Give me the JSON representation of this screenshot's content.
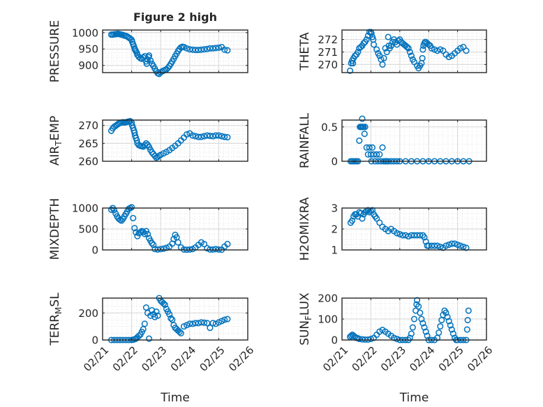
{
  "figure": {
    "title": "Figure 2 high",
    "marker_color": "#0072BD"
  },
  "chart_data": [
    {
      "type": "scatter",
      "id": "pressure",
      "title": "Figure 2 high",
      "ylabel": "PRESSURE",
      "ylabel_parts": [
        {
          "t": "PRESSURE",
          "s": "normal"
        }
      ],
      "xlabel": "",
      "xlim": [
        0,
        5
      ],
      "ylim": [
        878,
        1008
      ],
      "yticks": [
        900,
        950,
        1000
      ],
      "ytick_labels": [
        "900",
        "950",
        "1000"
      ],
      "xticks": [
        0,
        1,
        2,
        3,
        4,
        5
      ],
      "xtick_labels": [],
      "grid": true,
      "minor_grid": true,
      "x": [
        0.3,
        0.35,
        0.4,
        0.45,
        0.5,
        0.55,
        0.6,
        0.65,
        0.7,
        0.75,
        0.8,
        0.85,
        0.9,
        0.95,
        1.0,
        1.02,
        1.05,
        1.08,
        1.1,
        1.12,
        1.15,
        1.18,
        1.2,
        1.25,
        1.3,
        1.35,
        1.4,
        1.45,
        1.5,
        1.52,
        1.55,
        1.58,
        1.6,
        1.65,
        1.7,
        1.75,
        1.8,
        1.85,
        1.9,
        1.95,
        2.0,
        2.05,
        2.1,
        2.15,
        2.2,
        2.25,
        2.3,
        2.35,
        2.4,
        2.45,
        2.5,
        2.55,
        2.6,
        2.65,
        2.7,
        2.75,
        2.8,
        2.9,
        3.0,
        3.1,
        3.2,
        3.3,
        3.4,
        3.5,
        3.6,
        3.7,
        3.8,
        3.9,
        4.0,
        4.1,
        4.2,
        4.3
      ],
      "y": [
        994,
        994,
        995,
        995,
        996,
        996,
        995,
        994,
        993,
        991,
        990,
        988,
        985,
        982,
        978,
        972,
        965,
        958,
        952,
        948,
        943,
        938,
        932,
        926,
        922,
        920,
        924,
        928,
        912,
        905,
        918,
        925,
        930,
        915,
        905,
        898,
        890,
        882,
        876,
        874,
        879,
        882,
        884,
        886,
        888,
        892,
        898,
        905,
        912,
        920,
        928,
        936,
        944,
        950,
        955,
        957,
        956,
        952,
        949,
        948,
        947,
        947,
        948,
        949,
        950,
        952,
        952,
        953,
        954,
        956,
        948,
        946
      ]
    },
    {
      "type": "scatter",
      "id": "theta",
      "ylabel": "THETA",
      "ylabel_parts": [
        {
          "t": "THETA",
          "s": "normal"
        }
      ],
      "xlabel": "",
      "xlim": [
        0,
        5
      ],
      "ylim": [
        269.35,
        272.76
      ],
      "yticks": [
        270,
        271,
        272
      ],
      "ytick_labels": [
        "270",
        "271",
        "272"
      ],
      "xticks": [
        0,
        1,
        2,
        3,
        4,
        5
      ],
      "xtick_labels": [],
      "grid": true,
      "minor_grid": true,
      "x": [
        0.28,
        0.32,
        0.35,
        0.38,
        0.4,
        0.45,
        0.5,
        0.55,
        0.6,
        0.65,
        0.7,
        0.75,
        0.8,
        0.85,
        0.9,
        0.95,
        1.0,
        1.02,
        1.05,
        1.08,
        1.1,
        1.2,
        1.25,
        1.3,
        1.35,
        1.4,
        1.45,
        1.5,
        1.55,
        1.6,
        1.62,
        1.65,
        1.7,
        1.75,
        1.8,
        1.85,
        1.9,
        1.95,
        2.0,
        2.05,
        2.1,
        2.15,
        2.2,
        2.25,
        2.3,
        2.35,
        2.4,
        2.45,
        2.5,
        2.6,
        2.65,
        2.7,
        2.75,
        2.78,
        2.8,
        2.82,
        2.85,
        2.88,
        2.9,
        2.95,
        3.0,
        3.05,
        3.1,
        3.2,
        3.3,
        3.4,
        3.5,
        3.6,
        3.7,
        3.8,
        3.9,
        4.0,
        4.1,
        4.2,
        4.3
      ],
      "y": [
        269.5,
        270.1,
        270.3,
        270.1,
        270.5,
        270.7,
        270.8,
        271.0,
        271.3,
        271.4,
        271.5,
        271.7,
        271.8,
        272.0,
        272.3,
        272.6,
        272.6,
        272.5,
        272.2,
        272.0,
        271.6,
        271.2,
        270.9,
        270.7,
        270.4,
        270.0,
        270.5,
        271.3,
        271.0,
        272.2,
        271.5,
        271.3,
        271.5,
        271.8,
        272.0,
        271.8,
        271.6,
        271.9,
        272.0,
        271.8,
        271.7,
        271.6,
        271.5,
        271.4,
        271.3,
        271.0,
        270.7,
        270.4,
        270.2,
        269.9,
        269.7,
        269.9,
        270.1,
        270.5,
        271.2,
        271.5,
        271.7,
        271.8,
        271.8,
        271.7,
        271.6,
        271.5,
        271.3,
        271.2,
        271.1,
        271.2,
        271.1,
        270.8,
        270.6,
        270.7,
        270.9,
        271.1,
        271.3,
        271.4,
        271.1
      ]
    },
    {
      "type": "scatter",
      "id": "air_temp",
      "ylabel": "AIR_TEMP",
      "ylabel_parts": [
        {
          "t": "AIR",
          "s": "normal"
        },
        {
          "t": "T",
          "s": "sub"
        },
        {
          "t": "EMP",
          "s": "normal"
        }
      ],
      "xlabel": "",
      "xlim": [
        0,
        5
      ],
      "ylim": [
        260,
        271.5
      ],
      "yticks": [
        260,
        265,
        270
      ],
      "ytick_labels": [
        "260",
        "265",
        "270"
      ],
      "xticks": [
        0,
        1,
        2,
        3,
        4,
        5
      ],
      "xtick_labels": [],
      "grid": true,
      "minor_grid": true,
      "x": [
        0.3,
        0.35,
        0.4,
        0.45,
        0.5,
        0.55,
        0.6,
        0.65,
        0.7,
        0.75,
        0.8,
        0.85,
        0.9,
        0.95,
        1.0,
        1.02,
        1.05,
        1.08,
        1.1,
        1.12,
        1.15,
        1.18,
        1.2,
        1.25,
        1.3,
        1.35,
        1.4,
        1.45,
        1.5,
        1.55,
        1.6,
        1.65,
        1.7,
        1.75,
        1.8,
        1.85,
        1.9,
        1.95,
        2.0,
        2.1,
        2.2,
        2.3,
        2.4,
        2.5,
        2.6,
        2.7,
        2.8,
        2.9,
        3.0,
        3.1,
        3.2,
        3.3,
        3.4,
        3.5,
        3.6,
        3.7,
        3.8,
        3.9,
        4.0,
        4.1,
        4.2,
        4.3
      ],
      "y": [
        268.5,
        269.2,
        269.6,
        269.9,
        270.2,
        270.5,
        270.7,
        270.8,
        270.9,
        270.8,
        270.9,
        271.0,
        271.1,
        271.2,
        270.8,
        270.0,
        269.3,
        268.6,
        268.0,
        267.2,
        266.5,
        265.8,
        265.0,
        264.5,
        264.3,
        264.2,
        264.1,
        264.5,
        265.0,
        264.6,
        264.0,
        263.2,
        262.5,
        262.0,
        261.5,
        261.0,
        261.2,
        261.5,
        261.8,
        262.2,
        262.6,
        263.1,
        263.7,
        264.3,
        265.0,
        265.8,
        266.6,
        267.5,
        267.8,
        267.2,
        267.0,
        266.8,
        266.8,
        267.0,
        267.2,
        267.1,
        267.0,
        267.2,
        267.2,
        267.0,
        266.8,
        266.7
      ]
    },
    {
      "type": "scatter",
      "id": "rainfall",
      "ylabel": "RAINFALL",
      "ylabel_parts": [
        {
          "t": "RAINFALL",
          "s": "normal"
        }
      ],
      "xlabel": "",
      "xlim": [
        0,
        5
      ],
      "ylim": [
        0,
        0.6
      ],
      "yticks": [
        0,
        0.5
      ],
      "ytick_labels": [
        "0",
        "0.5"
      ],
      "xticks": [
        0,
        1,
        2,
        3,
        4,
        5
      ],
      "xtick_labels": [],
      "grid": true,
      "minor_grid": true,
      "x": [
        0.3,
        0.35,
        0.4,
        0.45,
        0.5,
        0.55,
        0.6,
        0.62,
        0.65,
        0.68,
        0.7,
        0.72,
        0.75,
        0.78,
        0.8,
        0.85,
        0.9,
        0.95,
        1.0,
        1.02,
        1.05,
        1.1,
        1.15,
        1.2,
        1.25,
        1.3,
        1.35,
        1.4,
        1.45,
        1.5,
        1.55,
        1.6,
        1.7,
        1.8,
        1.9,
        2.0,
        2.2,
        2.4,
        2.6,
        2.8,
        3.0,
        3.2,
        3.4,
        3.6,
        3.8,
        4.0,
        4.2,
        4.4
      ],
      "y": [
        0,
        0,
        0,
        0,
        0,
        0,
        0.3,
        0.5,
        0.5,
        0.5,
        0.62,
        0.5,
        0.5,
        0.4,
        0.5,
        0.2,
        0.1,
        0.2,
        0.1,
        0,
        0.2,
        0.1,
        0,
        0.1,
        0,
        0.1,
        0,
        0.2,
        0,
        0,
        0,
        0,
        0,
        0,
        0,
        0,
        0,
        0,
        0,
        0,
        0,
        0,
        0,
        0,
        0,
        0,
        0,
        0
      ]
    },
    {
      "type": "scatter",
      "id": "mixdepth",
      "ylabel": "MIXDEPTH",
      "ylabel_parts": [
        {
          "t": "MIXDEPTH",
          "s": "normal"
        }
      ],
      "xlabel": "",
      "xlim": [
        0,
        5
      ],
      "ylim": [
        0,
        1000
      ],
      "yticks": [
        0,
        500,
        1000
      ],
      "ytick_labels": [
        "0",
        "500",
        "1000"
      ],
      "xticks": [
        0,
        1,
        2,
        3,
        4,
        5
      ],
      "xtick_labels": [],
      "grid": true,
      "minor_grid": true,
      "x": [
        0.3,
        0.35,
        0.4,
        0.45,
        0.5,
        0.55,
        0.6,
        0.65,
        0.7,
        0.75,
        0.8,
        0.85,
        0.9,
        0.95,
        1.0,
        1.05,
        1.1,
        1.15,
        1.2,
        1.25,
        1.3,
        1.35,
        1.4,
        1.45,
        1.5,
        1.55,
        1.6,
        1.65,
        1.7,
        1.75,
        1.8,
        1.9,
        2.0,
        2.1,
        2.2,
        2.3,
        2.4,
        2.45,
        2.5,
        2.55,
        2.6,
        2.7,
        2.8,
        2.9,
        3.0,
        3.1,
        3.2,
        3.3,
        3.4,
        3.5,
        3.6,
        3.7,
        3.8,
        3.9,
        4.0,
        4.1,
        4.2,
        4.3
      ],
      "y": [
        960,
        1000,
        950,
        870,
        800,
        750,
        720,
        700,
        740,
        800,
        860,
        920,
        980,
        1000,
        1020,
        760,
        520,
        420,
        330,
        400,
        420,
        450,
        430,
        380,
        450,
        380,
        280,
        220,
        160,
        120,
        20,
        10,
        20,
        30,
        50,
        80,
        150,
        260,
        360,
        300,
        180,
        60,
        10,
        5,
        10,
        20,
        60,
        120,
        180,
        140,
        40,
        10,
        10,
        20,
        10,
        5,
        80,
        140
      ]
    },
    {
      "type": "scatter",
      "id": "h2omixra",
      "ylabel": "H2OMIXRA",
      "ylabel_parts": [
        {
          "t": "H2OMIXRA",
          "s": "normal"
        }
      ],
      "xlabel": "",
      "xlim": [
        0,
        5
      ],
      "ylim": [
        1,
        3
      ],
      "yticks": [
        1,
        2,
        3
      ],
      "ytick_labels": [
        "1",
        "2",
        "3"
      ],
      "xticks": [
        0,
        1,
        2,
        3,
        4,
        5
      ],
      "xtick_labels": [],
      "grid": true,
      "minor_grid": true,
      "x": [
        0.3,
        0.35,
        0.4,
        0.45,
        0.5,
        0.55,
        0.6,
        0.65,
        0.7,
        0.75,
        0.8,
        0.85,
        0.9,
        0.95,
        1.0,
        1.05,
        1.1,
        1.15,
        1.2,
        1.3,
        1.4,
        1.5,
        1.6,
        1.7,
        1.8,
        1.9,
        2.0,
        2.1,
        2.2,
        2.3,
        2.4,
        2.5,
        2.6,
        2.7,
        2.8,
        2.85,
        2.9,
        2.95,
        3.0,
        3.1,
        3.2,
        3.3,
        3.4,
        3.5,
        3.6,
        3.7,
        3.8,
        3.9,
        4.0,
        4.1,
        4.2,
        4.3
      ],
      "y": [
        2.3,
        2.4,
        2.6,
        2.7,
        2.7,
        2.6,
        2.8,
        2.75,
        2.5,
        2.7,
        2.8,
        2.85,
        2.9,
        2.8,
        2.85,
        2.9,
        2.7,
        2.6,
        2.5,
        2.3,
        2.1,
        2.0,
        1.9,
        2.0,
        1.9,
        1.8,
        1.75,
        1.7,
        1.7,
        1.65,
        1.7,
        1.7,
        1.7,
        1.7,
        1.7,
        1.6,
        1.4,
        1.2,
        1.2,
        1.2,
        1.2,
        1.2,
        1.15,
        1.1,
        1.2,
        1.25,
        1.3,
        1.3,
        1.25,
        1.2,
        1.15,
        1.1
      ]
    },
    {
      "type": "scatter",
      "id": "terr_msl",
      "ylabel": "TERR_MSL",
      "ylabel_parts": [
        {
          "t": "TERR",
          "s": "normal"
        },
        {
          "t": "M",
          "s": "sub"
        },
        {
          "t": "SL",
          "s": "normal"
        }
      ],
      "xlabel": "Time",
      "xlim": [
        0,
        5
      ],
      "ylim": [
        0,
        310
      ],
      "yticks": [
        0,
        200
      ],
      "ytick_labels": [
        "0",
        "200"
      ],
      "xticks": [
        0,
        1,
        2,
        3,
        4,
        5
      ],
      "xtick_labels": [
        "02/21",
        "02/22",
        "02/23",
        "02/24",
        "02/25",
        "02/26"
      ],
      "grid": true,
      "minor_grid": true,
      "x": [
        0.3,
        0.4,
        0.5,
        0.6,
        0.7,
        0.8,
        0.9,
        1.0,
        1.05,
        1.1,
        1.15,
        1.2,
        1.25,
        1.3,
        1.35,
        1.4,
        1.45,
        1.5,
        1.55,
        1.6,
        1.65,
        1.7,
        1.75,
        1.8,
        1.85,
        1.9,
        1.95,
        2.0,
        2.05,
        2.1,
        2.15,
        2.2,
        2.25,
        2.3,
        2.35,
        2.4,
        2.45,
        2.5,
        2.55,
        2.6,
        2.65,
        2.7,
        2.8,
        2.9,
        3.0,
        3.1,
        3.2,
        3.3,
        3.4,
        3.5,
        3.6,
        3.7,
        3.8,
        3.9,
        4.0,
        4.1,
        4.2,
        4.3
      ],
      "y": [
        0,
        0,
        0,
        0,
        0,
        0,
        0,
        0,
        2,
        5,
        10,
        20,
        30,
        40,
        60,
        80,
        120,
        240,
        200,
        10,
        180,
        220,
        190,
        170,
        210,
        180,
        310,
        290,
        280,
        270,
        260,
        230,
        210,
        190,
        160,
        150,
        110,
        90,
        80,
        70,
        60,
        50,
        100,
        110,
        120,
        120,
        125,
        125,
        130,
        128,
        125,
        90,
        125,
        120,
        130,
        140,
        150,
        155
      ]
    },
    {
      "type": "scatter",
      "id": "sun_flux",
      "ylabel": "SUN_FLUX",
      "ylabel_parts": [
        {
          "t": "SUN",
          "s": "normal"
        },
        {
          "t": "F",
          "s": "sub"
        },
        {
          "t": "LUX",
          "s": "normal"
        }
      ],
      "xlabel": "Time",
      "xlim": [
        0,
        5
      ],
      "ylim": [
        0,
        200
      ],
      "yticks": [
        0,
        100,
        200
      ],
      "ytick_labels": [
        "0",
        "100",
        "200"
      ],
      "xticks": [
        0,
        1,
        2,
        3,
        4,
        5
      ],
      "xtick_labels": [
        "02/21",
        "02/22",
        "02/23",
        "02/24",
        "02/25",
        "02/26"
      ],
      "grid": true,
      "minor_grid": true,
      "x": [
        0.28,
        0.32,
        0.36,
        0.4,
        0.45,
        0.5,
        0.55,
        0.6,
        0.7,
        0.8,
        0.9,
        1.0,
        1.1,
        1.2,
        1.3,
        1.4,
        1.5,
        1.6,
        1.7,
        1.8,
        1.9,
        2.0,
        2.1,
        2.2,
        2.3,
        2.35,
        2.4,
        2.45,
        2.5,
        2.55,
        2.58,
        2.6,
        2.65,
        2.7,
        2.75,
        2.8,
        2.85,
        2.9,
        2.95,
        3.0,
        3.1,
        3.2,
        3.3,
        3.35,
        3.4,
        3.45,
        3.5,
        3.55,
        3.6,
        3.65,
        3.7,
        3.75,
        3.8,
        3.85,
        3.9,
        3.95,
        4.0,
        4.1,
        4.2,
        4.3,
        4.33,
        4.35,
        4.38
      ],
      "y": [
        15,
        20,
        25,
        20,
        15,
        10,
        8,
        5,
        3,
        2,
        2,
        5,
        10,
        25,
        40,
        48,
        40,
        30,
        20,
        10,
        5,
        0,
        0,
        0,
        0,
        10,
        30,
        60,
        100,
        140,
        170,
        190,
        160,
        130,
        100,
        80,
        60,
        40,
        20,
        0,
        0,
        0,
        10,
        35,
        65,
        95,
        120,
        140,
        130,
        110,
        90,
        70,
        50,
        30,
        10,
        0,
        0,
        0,
        0,
        0,
        50,
        95,
        140
      ]
    }
  ]
}
